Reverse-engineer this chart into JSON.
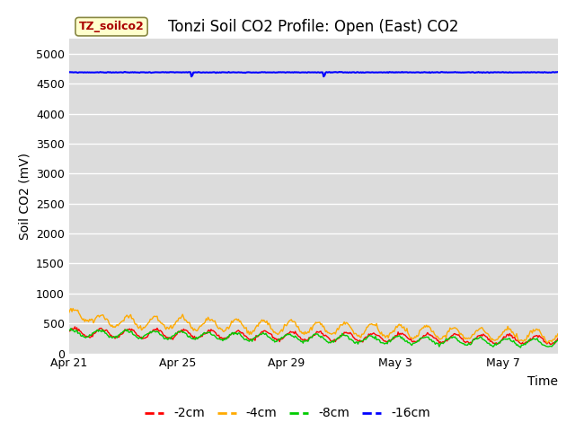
{
  "title": "Tonzi Soil CO2 Profile: Open (East) CO2",
  "ylabel": "Soil CO2 (mV)",
  "xlabel": "Time",
  "ylim": [
    0,
    5250
  ],
  "yticks": [
    0,
    500,
    1000,
    1500,
    2000,
    2500,
    3000,
    3500,
    4000,
    4500,
    5000
  ],
  "bg_color": "#dcdcdc",
  "fig_bg_color": "#ffffff",
  "legend_label": "TZ_soilco2",
  "legend_bg": "#ffffcc",
  "legend_border": "#aa0000",
  "series": [
    {
      "label": "-2cm",
      "color": "#ff0000",
      "lw": 1.0
    },
    {
      "label": "-4cm",
      "color": "#ffaa00",
      "lw": 1.0
    },
    {
      "label": "-8cm",
      "color": "#00cc00",
      "lw": 1.0
    },
    {
      "label": "-16cm",
      "color": "#0000ff",
      "lw": 1.5
    }
  ],
  "x_tick_labels": [
    "Apr 21",
    "Apr 25",
    "Apr 29",
    "May 3",
    "May 7"
  ],
  "x_tick_positions": [
    0,
    4,
    8,
    12,
    16
  ],
  "total_days": 18,
  "title_fontsize": 12,
  "axis_label_fontsize": 10,
  "tick_fontsize": 9
}
